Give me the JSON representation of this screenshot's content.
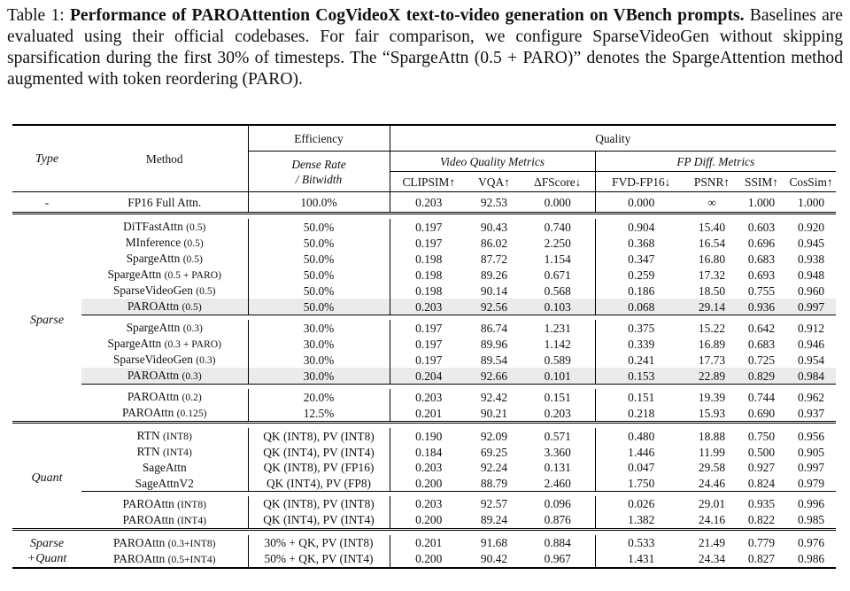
{
  "caption": {
    "label": "Table 1:",
    "title": "Performance of PAROAttention CogVideoX text-to-video generation on VBench prompts.",
    "text": "Baselines are evaluated using their official codebases. For fair comparison, we configure SparseVideoGen without skipping sparsification during the first 30% of timesteps. The “SpargeAttn (0.5 + PARO)” denotes the SpargeAttention method augmented with token reordering (PARO)."
  },
  "headers": {
    "type": "Type",
    "method": "Method",
    "efficiency": "Efficiency",
    "quality": "Quality",
    "dense_rate": "Dense Rate",
    "bitwidth": "/ Bitwidth",
    "video_quality_metrics": "Video Quality Metrics",
    "fp_diff_metrics": "FP Diff. Metrics",
    "cols": [
      "CLIPSIM↑",
      "VQA↑",
      "ΔFScore↓",
      "FVD-FP16↓",
      "PSNR↑",
      "SSIM↑",
      "CosSim↑"
    ]
  },
  "fp16": {
    "type": "-",
    "method": "FP16 Full Attn.",
    "eff": "100.0%",
    "vals": [
      "0.203",
      "92.53",
      "0.000",
      "0.000",
      "∞",
      "1.000",
      "1.000"
    ]
  },
  "sparse": {
    "label": "Sparse",
    "g1": [
      {
        "name": "DiTFastAttn",
        "arg": "(0.5)",
        "eff": "50.0%",
        "vals": [
          "0.197",
          "90.43",
          "0.740",
          "0.904",
          "15.40",
          "0.603",
          "0.920"
        ]
      },
      {
        "name": "MInference",
        "arg": "(0.5)",
        "eff": "50.0%",
        "vals": [
          "0.197",
          "86.02",
          "2.250",
          "0.368",
          "16.54",
          "0.696",
          "0.945"
        ]
      },
      {
        "name": "SpargeAttn",
        "arg": "(0.5)",
        "eff": "50.0%",
        "vals": [
          "0.198",
          "87.72",
          "1.154",
          "0.347",
          "16.80",
          "0.683",
          "0.938"
        ]
      },
      {
        "name": "SpargeAttn",
        "arg": "(0.5 + PARO)",
        "eff": "50.0%",
        "vals": [
          "0.198",
          "89.26",
          "0.671",
          "0.259",
          "17.32",
          "0.693",
          "0.948"
        ]
      },
      {
        "name": "SparseVideoGen",
        "arg": "(0.5)",
        "eff": "50.0%",
        "vals": [
          "0.198",
          "90.14",
          "0.568",
          "0.186",
          "18.50",
          "0.755",
          "0.960"
        ]
      },
      {
        "name": "PAROAttn",
        "arg": "(0.5)",
        "eff": "50.0%",
        "vals": [
          "0.203",
          "92.56",
          "0.103",
          "0.068",
          "29.14",
          "0.936",
          "0.997"
        ]
      }
    ],
    "g2": [
      {
        "name": "SpargeAttn",
        "arg": "(0.3)",
        "eff": "30.0%",
        "vals": [
          "0.197",
          "86.74",
          "1.231",
          "0.375",
          "15.22",
          "0.642",
          "0.912"
        ]
      },
      {
        "name": "SpargeAttn",
        "arg": "(0.3 + PARO)",
        "eff": "30.0%",
        "vals": [
          "0.197",
          "89.96",
          "1.142",
          "0.339",
          "16.89",
          "0.683",
          "0.946"
        ]
      },
      {
        "name": "SparseVideoGen",
        "arg": "(0.3)",
        "eff": "30.0%",
        "vals": [
          "0.197",
          "89.54",
          "0.589",
          "0.241",
          "17.73",
          "0.725",
          "0.954"
        ]
      },
      {
        "name": "PAROAttn",
        "arg": "(0.3)",
        "eff": "30.0%",
        "vals": [
          "0.204",
          "92.66",
          "0.101",
          "0.153",
          "22.89",
          "0.829",
          "0.984"
        ]
      }
    ],
    "g3": [
      {
        "name": "PAROAttn",
        "arg": "(0.2)",
        "eff": "20.0%",
        "vals": [
          "0.203",
          "92.42",
          "0.151",
          "0.151",
          "19.39",
          "0.744",
          "0.962"
        ]
      },
      {
        "name": "PAROAttn",
        "arg": "(0.125)",
        "eff": "12.5%",
        "vals": [
          "0.201",
          "90.21",
          "0.203",
          "0.218",
          "15.93",
          "0.690",
          "0.937"
        ]
      }
    ]
  },
  "quant": {
    "label": "Quant",
    "g1": [
      {
        "name": "RTN",
        "arg": "(INT8)",
        "eff": "QK (INT8), PV (INT8)",
        "vals": [
          "0.190",
          "92.09",
          "0.571",
          "0.480",
          "18.88",
          "0.750",
          "0.956"
        ]
      },
      {
        "name": "RTN",
        "arg": "(INT4)",
        "eff": "QK (INT4), PV (INT4)",
        "vals": [
          "0.184",
          "69.25",
          "3.360",
          "1.446",
          "11.99",
          "0.500",
          "0.905"
        ]
      },
      {
        "name": "SageAttn",
        "arg": "",
        "eff": "QK (INT8), PV (FP16)",
        "vals": [
          "0.203",
          "92.24",
          "0.131",
          "0.047",
          "29.58",
          "0.927",
          "0.997"
        ]
      },
      {
        "name": "SageAttnV2",
        "arg": "",
        "eff": "QK (INT4), PV (FP8)",
        "vals": [
          "0.200",
          "88.79",
          "2.460",
          "1.750",
          "24.46",
          "0.824",
          "0.979"
        ]
      }
    ],
    "g2": [
      {
        "name": "PAROAttn",
        "arg": "(INT8)",
        "eff": "QK (INT8), PV (INT8)",
        "vals": [
          "0.203",
          "92.57",
          "0.096",
          "0.026",
          "29.01",
          "0.935",
          "0.996"
        ]
      },
      {
        "name": "PAROAttn",
        "arg": "(INT4)",
        "eff": "QK (INT4), PV (INT4)",
        "vals": [
          "0.200",
          "89.24",
          "0.876",
          "1.382",
          "24.16",
          "0.822",
          "0.985"
        ]
      }
    ]
  },
  "sparse_quant": {
    "label_line1": "Sparse",
    "label_line2": "+Quant",
    "rows": [
      {
        "name": "PAROAttn",
        "arg": "(0.3+INT8)",
        "eff": "30% + QK, PV (INT8)",
        "vals": [
          "0.201",
          "91.68",
          "0.884",
          "0.533",
          "21.49",
          "0.779",
          "0.976"
        ]
      },
      {
        "name": "PAROAttn",
        "arg": "(0.5+INT4)",
        "eff": "50% + QK, PV (INT4)",
        "vals": [
          "0.200",
          "90.42",
          "0.967",
          "1.431",
          "24.34",
          "0.827",
          "0.986"
        ]
      }
    ]
  }
}
